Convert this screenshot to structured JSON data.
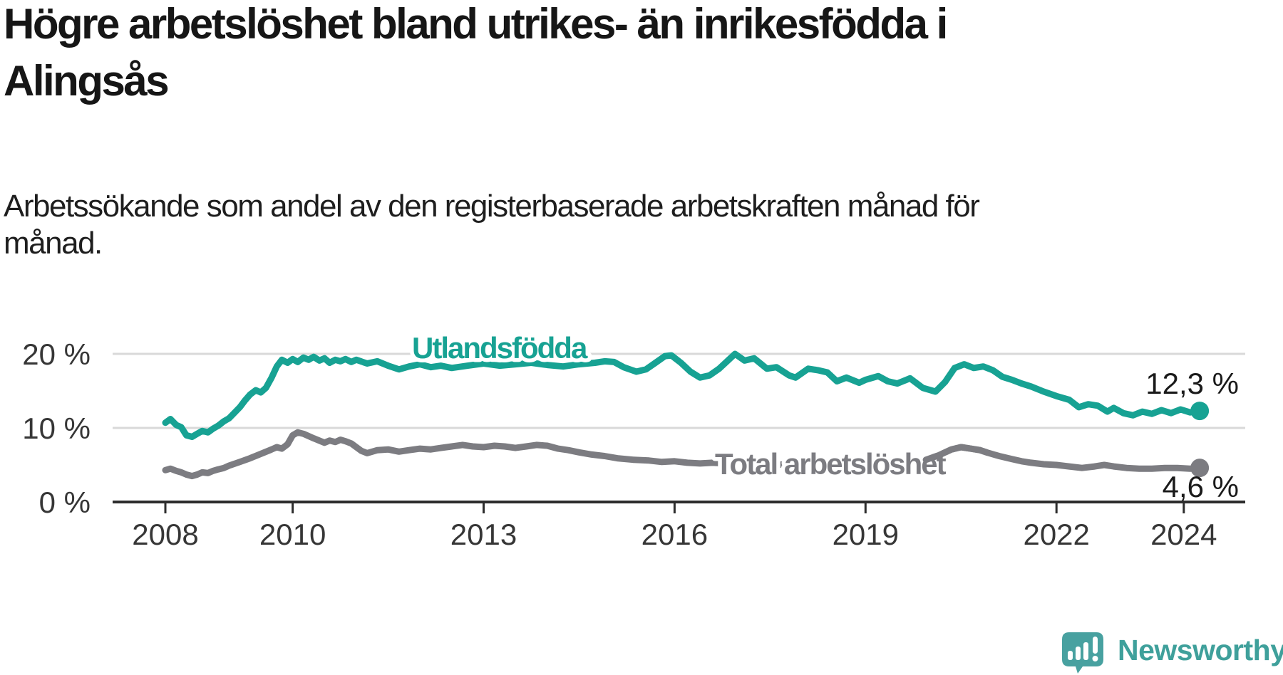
{
  "title": {
    "line1": "Högre arbetslöshet bland utrikes- än inrikesfödda i",
    "line2": "Alingsås"
  },
  "subtitle": {
    "line1": "Arbetssökande som andel av den registerbaserade arbetskraften månad för",
    "line2": "månad."
  },
  "logo": {
    "text": "Newsworthy",
    "accent_color": "#3fa09b",
    "icon_color": "#48a1a0"
  },
  "chart_data": {
    "type": "line",
    "title": "",
    "xlabel": "",
    "ylabel": "",
    "x_axis": {
      "tick_years": [
        2008,
        2010,
        2013,
        2016,
        2019,
        2022,
        2024
      ],
      "tick_labels": [
        "2008",
        "2010",
        "2013",
        "2016",
        "2019",
        "2022",
        "2024"
      ],
      "range": [
        2007.8,
        2024.9
      ]
    },
    "y_axis": {
      "ticks": [
        0,
        10,
        20
      ],
      "tick_labels": [
        "0 %",
        "10 %",
        "20 %"
      ],
      "range": [
        0,
        22
      ],
      "grid": true
    },
    "legend_position": "inline-labels",
    "series": [
      {
        "name": "Utlandsfödda",
        "color": "#17a293",
        "end_label": "12,3 %",
        "end_value": 12.3,
        "points": [
          [
            2008.0,
            10.7
          ],
          [
            2008.08,
            11.2
          ],
          [
            2008.17,
            10.4
          ],
          [
            2008.25,
            10.1
          ],
          [
            2008.33,
            9.0
          ],
          [
            2008.42,
            8.8
          ],
          [
            2008.5,
            9.2
          ],
          [
            2008.58,
            9.6
          ],
          [
            2008.67,
            9.4
          ],
          [
            2008.75,
            9.9
          ],
          [
            2008.83,
            10.3
          ],
          [
            2008.92,
            10.9
          ],
          [
            2009.0,
            11.3
          ],
          [
            2009.08,
            12.0
          ],
          [
            2009.17,
            12.8
          ],
          [
            2009.25,
            13.7
          ],
          [
            2009.33,
            14.5
          ],
          [
            2009.42,
            15.1
          ],
          [
            2009.5,
            14.8
          ],
          [
            2009.58,
            15.4
          ],
          [
            2009.67,
            16.8
          ],
          [
            2009.75,
            18.3
          ],
          [
            2009.83,
            19.2
          ],
          [
            2009.92,
            18.8
          ],
          [
            2010.0,
            19.3
          ],
          [
            2010.08,
            18.9
          ],
          [
            2010.17,
            19.5
          ],
          [
            2010.25,
            19.2
          ],
          [
            2010.33,
            19.6
          ],
          [
            2010.42,
            19.1
          ],
          [
            2010.5,
            19.4
          ],
          [
            2010.58,
            18.8
          ],
          [
            2010.67,
            19.2
          ],
          [
            2010.75,
            19.0
          ],
          [
            2010.83,
            19.3
          ],
          [
            2010.92,
            18.9
          ],
          [
            2011.0,
            19.2
          ],
          [
            2011.17,
            18.7
          ],
          [
            2011.33,
            19.0
          ],
          [
            2011.5,
            18.4
          ],
          [
            2011.67,
            17.9
          ],
          [
            2011.83,
            18.3
          ],
          [
            2012.0,
            18.6
          ],
          [
            2012.17,
            18.2
          ],
          [
            2012.33,
            18.4
          ],
          [
            2012.5,
            18.1
          ],
          [
            2012.75,
            18.4
          ],
          [
            2013.0,
            18.7
          ],
          [
            2013.25,
            18.4
          ],
          [
            2013.5,
            18.6
          ],
          [
            2013.75,
            18.8
          ],
          [
            2014.0,
            18.5
          ],
          [
            2014.25,
            18.3
          ],
          [
            2014.5,
            18.6
          ],
          [
            2014.75,
            18.8
          ],
          [
            2014.9,
            19.0
          ],
          [
            2015.05,
            18.9
          ],
          [
            2015.2,
            18.2
          ],
          [
            2015.4,
            17.6
          ],
          [
            2015.55,
            17.9
          ],
          [
            2015.7,
            18.8
          ],
          [
            2015.85,
            19.7
          ],
          [
            2015.95,
            19.8
          ],
          [
            2016.1,
            18.8
          ],
          [
            2016.25,
            17.6
          ],
          [
            2016.4,
            16.8
          ],
          [
            2016.55,
            17.1
          ],
          [
            2016.7,
            18.0
          ],
          [
            2016.85,
            19.2
          ],
          [
            2016.95,
            20.0
          ],
          [
            2017.1,
            19.1
          ],
          [
            2017.25,
            19.4
          ],
          [
            2017.45,
            18.0
          ],
          [
            2017.6,
            18.2
          ],
          [
            2017.8,
            17.1
          ],
          [
            2017.9,
            16.8
          ],
          [
            2018.1,
            18.0
          ],
          [
            2018.25,
            17.8
          ],
          [
            2018.4,
            17.5
          ],
          [
            2018.55,
            16.3
          ],
          [
            2018.7,
            16.8
          ],
          [
            2018.9,
            16.1
          ],
          [
            2019.0,
            16.5
          ],
          [
            2019.2,
            17.0
          ],
          [
            2019.35,
            16.3
          ],
          [
            2019.5,
            16.0
          ],
          [
            2019.7,
            16.7
          ],
          [
            2019.9,
            15.4
          ],
          [
            2020.1,
            14.9
          ],
          [
            2020.25,
            16.2
          ],
          [
            2020.4,
            18.1
          ],
          [
            2020.55,
            18.6
          ],
          [
            2020.7,
            18.1
          ],
          [
            2020.85,
            18.3
          ],
          [
            2021.0,
            17.8
          ],
          [
            2021.15,
            16.9
          ],
          [
            2021.3,
            16.5
          ],
          [
            2021.45,
            16.0
          ],
          [
            2021.6,
            15.6
          ],
          [
            2021.8,
            14.9
          ],
          [
            2022.0,
            14.3
          ],
          [
            2022.2,
            13.8
          ],
          [
            2022.35,
            12.8
          ],
          [
            2022.5,
            13.2
          ],
          [
            2022.65,
            13.0
          ],
          [
            2022.8,
            12.2
          ],
          [
            2022.9,
            12.7
          ],
          [
            2023.05,
            12.0
          ],
          [
            2023.2,
            11.7
          ],
          [
            2023.35,
            12.2
          ],
          [
            2023.5,
            11.9
          ],
          [
            2023.65,
            12.4
          ],
          [
            2023.8,
            12.0
          ],
          [
            2023.95,
            12.5
          ],
          [
            2024.1,
            12.1
          ],
          [
            2024.25,
            12.3
          ]
        ]
      },
      {
        "name": "Total arbetslöshet",
        "color": "#7c7c81",
        "end_label": "4,6 %",
        "end_value": 4.6,
        "points": [
          [
            2008.0,
            4.3
          ],
          [
            2008.08,
            4.5
          ],
          [
            2008.17,
            4.2
          ],
          [
            2008.25,
            4.0
          ],
          [
            2008.33,
            3.7
          ],
          [
            2008.42,
            3.5
          ],
          [
            2008.5,
            3.7
          ],
          [
            2008.58,
            4.0
          ],
          [
            2008.67,
            3.9
          ],
          [
            2008.75,
            4.2
          ],
          [
            2008.83,
            4.4
          ],
          [
            2008.92,
            4.6
          ],
          [
            2009.0,
            4.9
          ],
          [
            2009.17,
            5.4
          ],
          [
            2009.33,
            5.9
          ],
          [
            2009.5,
            6.5
          ],
          [
            2009.67,
            7.1
          ],
          [
            2009.75,
            7.4
          ],
          [
            2009.83,
            7.2
          ],
          [
            2009.92,
            7.8
          ],
          [
            2010.0,
            9.0
          ],
          [
            2010.08,
            9.4
          ],
          [
            2010.17,
            9.2
          ],
          [
            2010.33,
            8.6
          ],
          [
            2010.5,
            8.0
          ],
          [
            2010.58,
            8.3
          ],
          [
            2010.67,
            8.1
          ],
          [
            2010.75,
            8.4
          ],
          [
            2010.83,
            8.2
          ],
          [
            2010.92,
            7.9
          ],
          [
            2011.0,
            7.4
          ],
          [
            2011.08,
            6.9
          ],
          [
            2011.17,
            6.6
          ],
          [
            2011.33,
            7.0
          ],
          [
            2011.5,
            7.1
          ],
          [
            2011.67,
            6.8
          ],
          [
            2011.83,
            7.0
          ],
          [
            2012.0,
            7.2
          ],
          [
            2012.17,
            7.1
          ],
          [
            2012.33,
            7.3
          ],
          [
            2012.5,
            7.5
          ],
          [
            2012.67,
            7.7
          ],
          [
            2012.83,
            7.5
          ],
          [
            2013.0,
            7.4
          ],
          [
            2013.17,
            7.6
          ],
          [
            2013.33,
            7.5
          ],
          [
            2013.5,
            7.3
          ],
          [
            2013.67,
            7.5
          ],
          [
            2013.83,
            7.7
          ],
          [
            2014.0,
            7.6
          ],
          [
            2014.17,
            7.2
          ],
          [
            2014.33,
            7.0
          ],
          [
            2014.5,
            6.7
          ],
          [
            2014.7,
            6.4
          ],
          [
            2014.9,
            6.2
          ],
          [
            2015.1,
            5.9
          ],
          [
            2015.35,
            5.7
          ],
          [
            2015.6,
            5.6
          ],
          [
            2015.8,
            5.4
          ],
          [
            2016.0,
            5.5
          ],
          [
            2016.2,
            5.3
          ],
          [
            2016.4,
            5.2
          ],
          [
            2016.6,
            5.3
          ],
          [
            2016.8,
            5.2
          ],
          [
            2017.0,
            5.0
          ],
          [
            2017.3,
            5.3
          ],
          [
            2017.6,
            5.1
          ],
          [
            2017.9,
            4.9
          ],
          [
            2018.2,
            5.0
          ],
          [
            2018.5,
            5.2
          ],
          [
            2018.8,
            5.4
          ],
          [
            2019.1,
            5.5
          ],
          [
            2019.4,
            5.4
          ],
          [
            2019.7,
            5.5
          ],
          [
            2019.95,
            5.7
          ],
          [
            2020.15,
            6.3
          ],
          [
            2020.35,
            7.1
          ],
          [
            2020.5,
            7.4
          ],
          [
            2020.65,
            7.2
          ],
          [
            2020.8,
            7.0
          ],
          [
            2020.9,
            6.7
          ],
          [
            2021.1,
            6.2
          ],
          [
            2021.3,
            5.8
          ],
          [
            2021.45,
            5.5
          ],
          [
            2021.6,
            5.3
          ],
          [
            2021.8,
            5.1
          ],
          [
            2022.0,
            5.0
          ],
          [
            2022.2,
            4.8
          ],
          [
            2022.4,
            4.6
          ],
          [
            2022.6,
            4.8
          ],
          [
            2022.75,
            5.0
          ],
          [
            2022.9,
            4.8
          ],
          [
            2023.1,
            4.6
          ],
          [
            2023.3,
            4.5
          ],
          [
            2023.5,
            4.5
          ],
          [
            2023.7,
            4.6
          ],
          [
            2023.9,
            4.6
          ],
          [
            2024.1,
            4.5
          ],
          [
            2024.25,
            4.6
          ]
        ]
      }
    ]
  }
}
